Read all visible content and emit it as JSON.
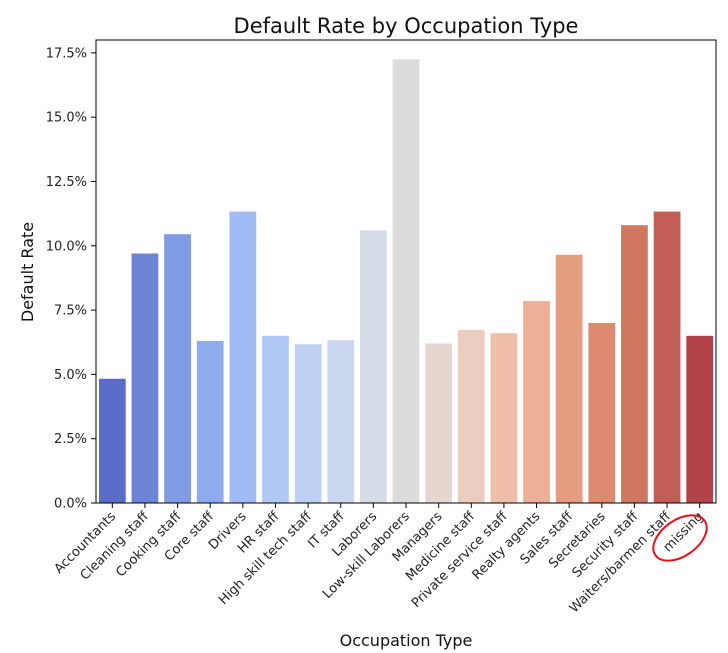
{
  "chart_data": {
    "type": "bar",
    "title": "Default Rate by Occupation Type",
    "xlabel": "Occupation Type",
    "ylabel": "Default Rate",
    "categories": [
      "Accountants",
      "Cleaning staff",
      "Cooking staff",
      "Core staff",
      "Drivers",
      "HR staff",
      "High skill tech staff",
      "IT staff",
      "Laborers",
      "Low-skill Laborers",
      "Managers",
      "Medicine staff",
      "Private service staff",
      "Realty agents",
      "Sales staff",
      "Secretaries",
      "Security staff",
      "Waiters/barmen staff",
      "missing"
    ],
    "values": [
      0.0483,
      0.097,
      0.1045,
      0.063,
      0.1133,
      0.065,
      0.0617,
      0.0633,
      0.106,
      0.1725,
      0.062,
      0.0673,
      0.066,
      0.0785,
      0.0965,
      0.07,
      0.108,
      0.1133,
      0.065
    ],
    "colors": [
      "#5b6bc8",
      "#6c83d6",
      "#7e9be3",
      "#8eacec",
      "#a1bbf5",
      "#b1c7f6",
      "#bed1f2",
      "#cad7ef",
      "#d5dce6",
      "#dcdcdc",
      "#e5d7cf",
      "#ebcdbf",
      "#efbea9",
      "#ecb096",
      "#e59d80",
      "#dd8a6e",
      "#d07661",
      "#c25e55",
      "#b3434a"
    ],
    "yticks": [
      "0.0%",
      "2.5%",
      "5.0%",
      "7.5%",
      "10.0%",
      "12.5%",
      "15.0%",
      "17.5%"
    ],
    "ylim": [
      0,
      0.18
    ],
    "grid": false,
    "annotation": "red freehand circle around 'missing' label"
  }
}
